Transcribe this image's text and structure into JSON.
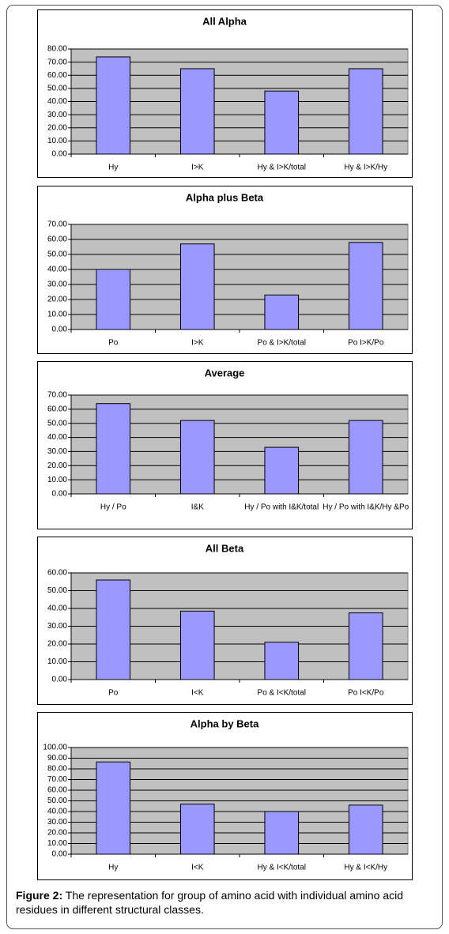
{
  "chart_data": [
    {
      "type": "bar",
      "title": "All Alpha",
      "categories": [
        "Hy",
        "I>K",
        "Hy & I>K/total",
        "Hy & I>K/Hy"
      ],
      "values": [
        74,
        65,
        48,
        65
      ],
      "color": "#9999ff",
      "ylim": [
        0,
        80
      ],
      "yticks": [
        {
          "value": 0,
          "label": "0.00"
        },
        {
          "value": 10,
          "label": "10.00"
        },
        {
          "value": 20,
          "label": "20.00"
        },
        {
          "value": 30,
          "label": "30.00"
        },
        {
          "value": 40,
          "label": "40.00"
        },
        {
          "value": 50,
          "label": "50.00"
        },
        {
          "value": 60,
          "label": "60.00"
        },
        {
          "value": 70,
          "label": "70.00"
        },
        {
          "value": 80,
          "label": "80.00"
        }
      ],
      "grid": true
    },
    {
      "type": "bar",
      "title": "Alpha plus Beta",
      "categories": [
        "Po",
        "I>K",
        "Po & I>K/total",
        "Po I>K/Po"
      ],
      "values": [
        40,
        57,
        23,
        58
      ],
      "color": "#9999ff",
      "ylim": [
        0,
        70
      ],
      "yticks": [
        {
          "value": 0,
          "label": "0.00"
        },
        {
          "value": 10,
          "label": "10.00"
        },
        {
          "value": 20,
          "label": "20.00"
        },
        {
          "value": 30,
          "label": "30.00"
        },
        {
          "value": 40,
          "label": "40.00"
        },
        {
          "value": 50,
          "label": "50.00"
        },
        {
          "value": 60,
          "label": "60.00"
        },
        {
          "value": 70,
          "label": "70.00"
        }
      ],
      "grid": true
    },
    {
      "type": "bar",
      "title": "Average",
      "categories": [
        "Hy / Po",
        "I&K",
        "Hy / Po with I&K/total",
        "Hy / Po with I&K/Hy &Po"
      ],
      "values": [
        64,
        52,
        33,
        52
      ],
      "color": "#9999ff",
      "ylim": [
        0,
        70
      ],
      "yticks": [
        {
          "value": 0,
          "label": "0.00"
        },
        {
          "value": 10,
          "label": "10.00"
        },
        {
          "value": 20,
          "label": "20.00"
        },
        {
          "value": 30,
          "label": "30.00"
        },
        {
          "value": 40,
          "label": "40.00"
        },
        {
          "value": 50,
          "label": "50.00"
        },
        {
          "value": 60,
          "label": "60.00"
        },
        {
          "value": 70,
          "label": "70.00"
        }
      ],
      "grid": true
    },
    {
      "type": "bar",
      "title": "All Beta",
      "categories": [
        "Po",
        "I<K",
        "Po & I<K/total",
        "Po I<K/Po"
      ],
      "values": [
        56,
        38.5,
        21,
        37.5
      ],
      "color": "#9999ff",
      "ylim": [
        0,
        60
      ],
      "yticks": [
        {
          "value": 0,
          "label": "0.00"
        },
        {
          "value": 10,
          "label": "10.00"
        },
        {
          "value": 20,
          "label": "20.00"
        },
        {
          "value": 30,
          "label": "30.00"
        },
        {
          "value": 40,
          "label": "40.00"
        },
        {
          "value": 50,
          "label": "50.00"
        },
        {
          "value": 60,
          "label": "60.00"
        }
      ],
      "grid": true
    },
    {
      "type": "bar",
      "title": "Alpha by Beta",
      "categories": [
        "Hy",
        "I<K",
        "Hy & I<K/total",
        "Hy & I<K/Hy"
      ],
      "values": [
        86.5,
        47,
        40,
        46
      ],
      "color": "#9999ff",
      "ylim": [
        0,
        100
      ],
      "yticks": [
        {
          "value": 0,
          "label": "0.00"
        },
        {
          "value": 10,
          "label": "10.00"
        },
        {
          "value": 20,
          "label": "20.00"
        },
        {
          "value": 30,
          "label": "30.00"
        },
        {
          "value": 40,
          "label": "40.00"
        },
        {
          "value": 50,
          "label": "50.00"
        },
        {
          "value": 60,
          "label": "60.00"
        },
        {
          "value": 70,
          "label": "70.00"
        },
        {
          "value": 80,
          "label": "80.00"
        },
        {
          "value": 90,
          "label": "90.00"
        },
        {
          "value": 100,
          "label": "100.00"
        }
      ],
      "grid": true
    }
  ],
  "caption": {
    "label": "Figure 2:",
    "text": "The representation for group of amino acid with individual amino acid residues in different structural classes."
  }
}
